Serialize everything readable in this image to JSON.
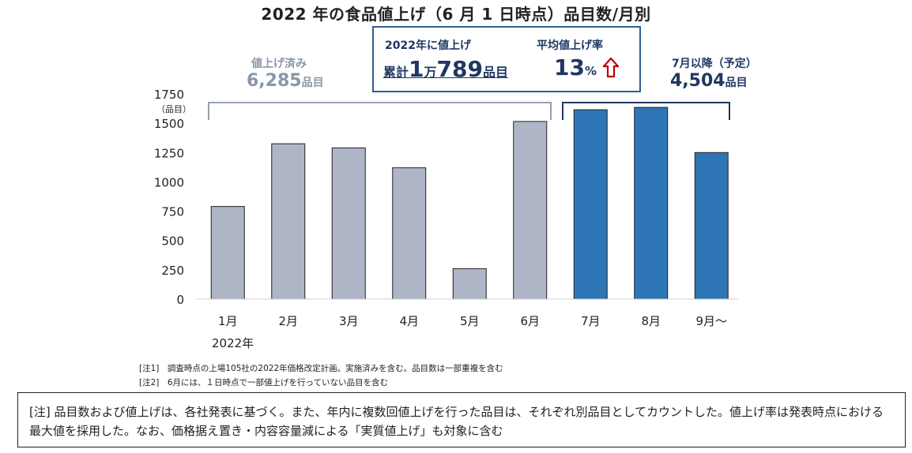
{
  "title": "2022 年の食品値上げ（6 月 1 日時点）品目数/月別",
  "summary": {
    "total_label": "2022年に値上げ",
    "total_prefix": "累計",
    "total_n1": "1",
    "total_unit1": "万",
    "total_n2": "789",
    "total_unit2": "品目",
    "avg_label": "平均値上げ率",
    "avg_value": "13",
    "avg_unit": "%"
  },
  "done": {
    "label": "値上げ済み",
    "value": "6,285",
    "unit": "品目"
  },
  "planned": {
    "label": "7月以降（予定）",
    "value": "4,504",
    "unit": "品目"
  },
  "chart_data": {
    "type": "bar",
    "categories": [
      "1月",
      "2月",
      "3月",
      "4月",
      "5月",
      "6月",
      "7月",
      "8月",
      "9月～"
    ],
    "values": [
      790,
      1325,
      1290,
      1120,
      260,
      1515,
      1615,
      1635,
      1250
    ],
    "bar_colors": [
      "#adb5c6",
      "#adb5c6",
      "#adb5c6",
      "#adb5c6",
      "#adb5c6",
      "#adb5c6",
      "#2e75b6",
      "#2e75b6",
      "#2e75b6"
    ],
    "yticks": [
      "0",
      "250",
      "500",
      "750",
      "1000",
      "1250",
      "1500",
      "1750"
    ],
    "ylim": [
      0,
      1750
    ],
    "ylabel": "（品目）",
    "year_label": "2022年",
    "grid": false
  },
  "notes": [
    "[注1]　調査時点の上場105社の2022年価格改定計画。実施済みを含む。品目数は一部重複を含む",
    "[注2]　6月には、１日時点で一部値上げを行っていない品目を含む"
  ],
  "footnote": "[注]  品目数および値上げは、各社発表に基づく。また、年内に複数回値上げを行った品目は、それぞれ別品目としてカウントした。値上げ率は発表時点における最大値を採用した。なお、価格据え置き・内容容量減による「実質値上げ」も対象に含む",
  "colors": {
    "done": "#adb5c6",
    "planned": "#2e75b6",
    "navy": "#1f3864",
    "arrow": "#c00000"
  }
}
